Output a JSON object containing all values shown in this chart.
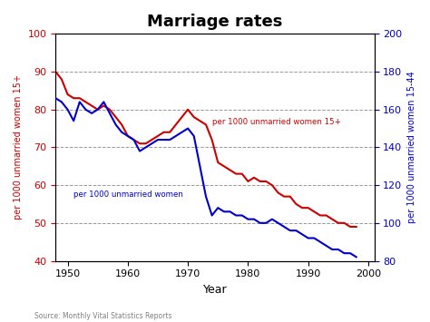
{
  "title": "Marriage rates",
  "xlabel": "Year",
  "ylabel_left": "per 1000 unmarried women 15+",
  "ylabel_right": "per 1000 unmarried women 15-44",
  "source": "Source: Monthly Vital Statistics Reports",
  "left_color": "#cc0000",
  "right_color": "#0000cc",
  "left_label": "per 1000 unmarried women 15+",
  "right_label": "per 1000 unmarried women",
  "xlim": [
    1948,
    2001
  ],
  "ylim_left": [
    40,
    100
  ],
  "ylim_right": [
    80,
    200
  ],
  "yticks_left": [
    40,
    50,
    60,
    70,
    80,
    90,
    100
  ],
  "yticks_right": [
    80,
    100,
    120,
    140,
    160,
    180,
    200
  ],
  "xticks": [
    1950,
    1960,
    1970,
    1980,
    1990,
    2000
  ],
  "red_data": {
    "years": [
      1948,
      1949,
      1950,
      1951,
      1952,
      1953,
      1954,
      1955,
      1956,
      1957,
      1958,
      1959,
      1960,
      1961,
      1962,
      1963,
      1964,
      1965,
      1966,
      1967,
      1968,
      1969,
      1970,
      1971,
      1972,
      1973,
      1974,
      1975,
      1976,
      1977,
      1978,
      1979,
      1980,
      1981,
      1982,
      1983,
      1984,
      1985,
      1986,
      1987,
      1988,
      1989,
      1990,
      1991,
      1992,
      1993,
      1994,
      1995,
      1996,
      1997,
      1998
    ],
    "values": [
      90,
      88,
      84,
      83,
      83,
      82,
      81,
      80,
      81,
      80,
      78,
      76,
      73,
      72,
      71,
      71,
      72,
      73,
      74,
      74,
      76,
      78,
      80,
      78,
      77,
      76,
      72,
      66,
      65,
      64,
      63,
      63,
      61,
      62,
      61,
      61,
      60,
      58,
      57,
      57,
      55,
      54,
      54,
      53,
      52,
      52,
      51,
      50,
      50,
      49,
      49
    ]
  },
  "blue_data": {
    "years": [
      1948,
      1949,
      1950,
      1951,
      1952,
      1953,
      1954,
      1955,
      1956,
      1957,
      1958,
      1959,
      1960,
      1961,
      1962,
      1963,
      1964,
      1965,
      1966,
      1967,
      1968,
      1969,
      1970,
      1971,
      1972,
      1973,
      1974,
      1975,
      1976,
      1977,
      1978,
      1979,
      1980,
      1981,
      1982,
      1983,
      1984,
      1985,
      1986,
      1987,
      1988,
      1989,
      1990,
      1991,
      1992,
      1993,
      1994,
      1995,
      1996,
      1997,
      1998
    ],
    "values": [
      166,
      164,
      160,
      154,
      164,
      160,
      158,
      160,
      164,
      158,
      152,
      148,
      146,
      144,
      138,
      140,
      142,
      144,
      144,
      144,
      146,
      148,
      150,
      146,
      130,
      114,
      104,
      108,
      106,
      106,
      104,
      104,
      102,
      102,
      100,
      100,
      102,
      100,
      98,
      96,
      96,
      94,
      92,
      92,
      90,
      88,
      86,
      86,
      84,
      84,
      82
    ]
  },
  "background_color": "#ffffff",
  "grid_color": "#808080"
}
